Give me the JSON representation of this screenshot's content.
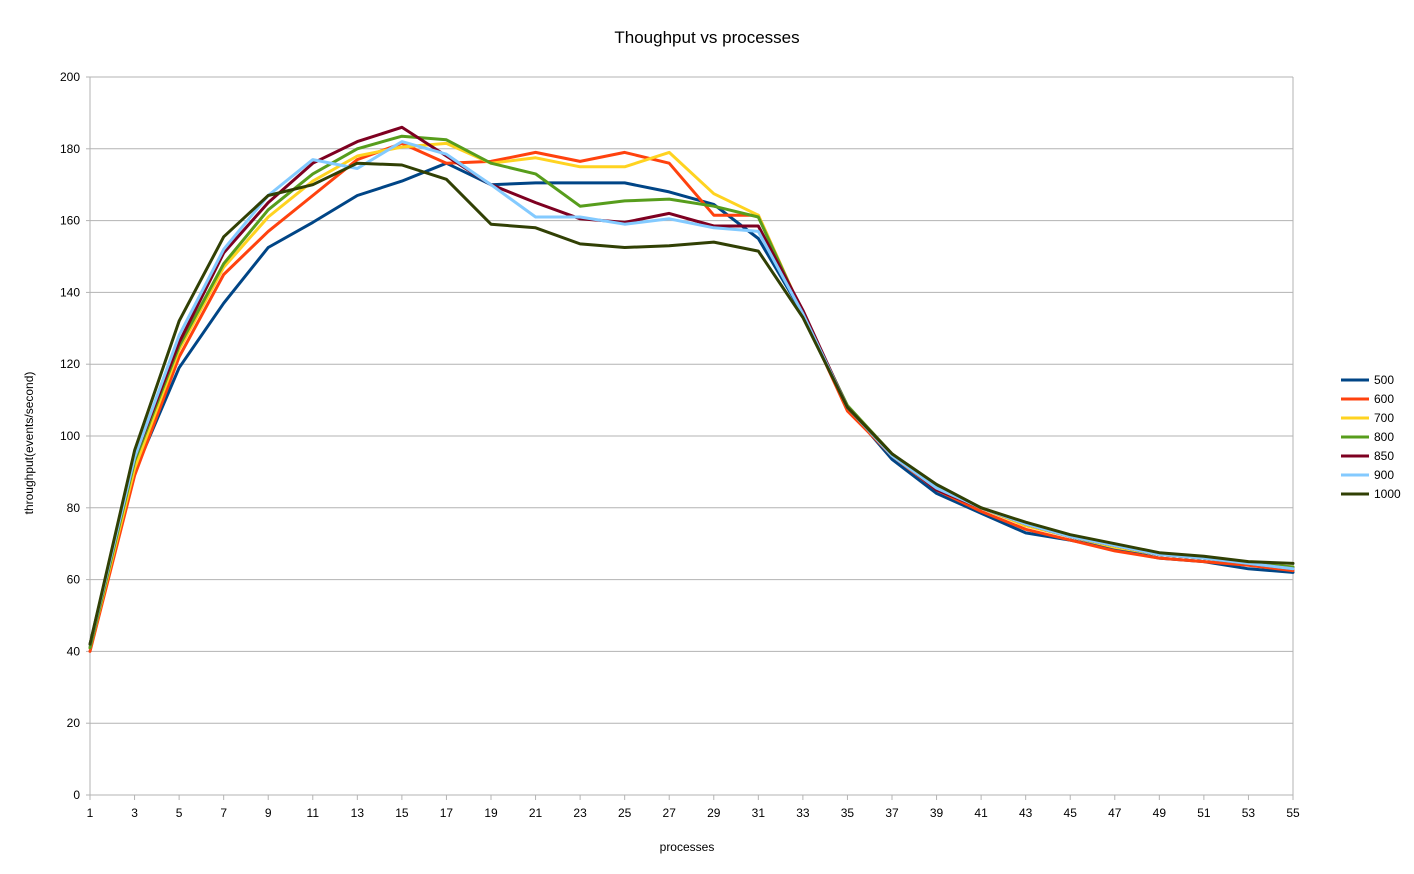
{
  "chart_data": {
    "type": "line",
    "title": "Thoughput vs processes",
    "xlabel": "processes",
    "ylabel": "throughput(events/second)",
    "ylim": [
      0,
      200
    ],
    "y_ticks": [
      0,
      20,
      40,
      60,
      80,
      100,
      120,
      140,
      160,
      180,
      200
    ],
    "x": [
      1,
      3,
      5,
      7,
      9,
      11,
      13,
      15,
      17,
      19,
      21,
      23,
      25,
      27,
      29,
      31,
      33,
      35,
      37,
      39,
      41,
      43,
      45,
      47,
      49,
      51,
      53,
      55
    ],
    "grid": "horizontal",
    "legend_position": "right",
    "series": [
      {
        "name": "500",
        "color": "#004586",
        "values": [
          41,
          90,
          119,
          137,
          152.5,
          159.5,
          167,
          171,
          176,
          170,
          170.5,
          170.5,
          170.5,
          168,
          164.5,
          155,
          134,
          108,
          93.5,
          84,
          78.5,
          73,
          71,
          68.5,
          66,
          65,
          63,
          62
        ]
      },
      {
        "name": "600",
        "color": "#ff420e",
        "values": [
          40,
          89,
          122,
          145,
          157,
          167,
          177,
          181.5,
          176,
          176.5,
          179,
          176.5,
          179,
          176,
          161.5,
          161.5,
          134,
          107,
          94.5,
          85,
          79,
          74,
          71,
          68,
          66,
          65,
          64,
          62.5
        ]
      },
      {
        "name": "700",
        "color": "#ffd320",
        "values": [
          41,
          91,
          124,
          147,
          161,
          171,
          178,
          180.5,
          181.5,
          176,
          177.5,
          175,
          175,
          179,
          167.5,
          161.5,
          134,
          108,
          95,
          85.5,
          80,
          75,
          72,
          69,
          67,
          66,
          64.5,
          63.5
        ]
      },
      {
        "name": "800",
        "color": "#579d1c",
        "values": [
          41,
          93,
          125,
          148,
          163,
          173,
          180,
          183.5,
          182.5,
          176,
          173,
          164,
          165.5,
          166,
          164,
          161,
          134,
          108.5,
          95,
          86,
          80,
          75.5,
          72,
          69.5,
          67,
          66,
          64.5,
          63.5
        ]
      },
      {
        "name": "850",
        "color": "#7e0021",
        "values": [
          42,
          94,
          126,
          151,
          165,
          176,
          182,
          186,
          178,
          170,
          165,
          160.5,
          159.5,
          162,
          158.5,
          158.5,
          135,
          108,
          95,
          85,
          80,
          75.5,
          72,
          69.5,
          67,
          66,
          64.5,
          63
        ]
      },
      {
        "name": "900",
        "color": "#83caff",
        "values": [
          42,
          94,
          128,
          152,
          167,
          177,
          174.5,
          182,
          178.5,
          170,
          161,
          161,
          159,
          160.5,
          158,
          157,
          134,
          108,
          94.5,
          85.5,
          80,
          75.5,
          72,
          69.5,
          67,
          66,
          64.5,
          63
        ]
      },
      {
        "name": "1000",
        "color": "#314004",
        "values": [
          42,
          96,
          132,
          155.5,
          167,
          170,
          176,
          175.5,
          171.5,
          159,
          158,
          153.5,
          152.5,
          153,
          154,
          151.5,
          133,
          108,
          95,
          86.5,
          80,
          76,
          72.5,
          70,
          67.5,
          66.5,
          65,
          64.5
        ]
      }
    ]
  }
}
